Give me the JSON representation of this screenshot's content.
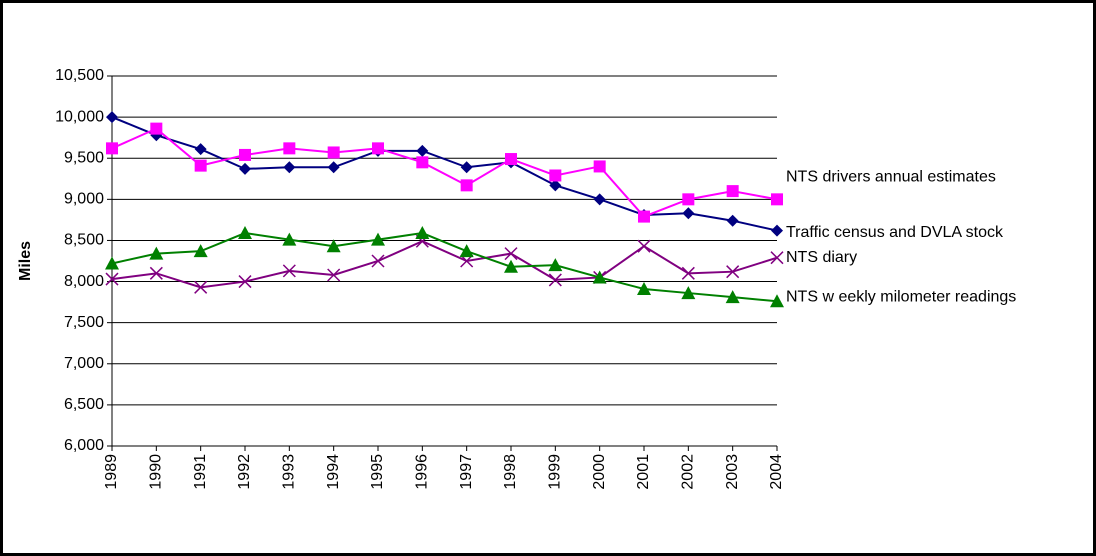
{
  "chart_data": {
    "type": "line",
    "y_axis_label": "Miles",
    "categories": [
      "1989",
      "1990",
      "1991",
      "1992",
      "1993",
      "1994",
      "1995",
      "1996",
      "1997",
      "1998",
      "1999",
      "2000",
      "2001",
      "2002",
      "2003",
      "2004"
    ],
    "series": [
      {
        "name": "Traffic census and DVLA stock",
        "color": "#000080",
        "marker": "diamond",
        "values": [
          10000,
          9780,
          9610,
          9370,
          9390,
          9390,
          9590,
          9590,
          9390,
          9450,
          9170,
          9000,
          8810,
          8830,
          8740,
          8620
        ]
      },
      {
        "name": "NTS drivers annual estimates",
        "color": "#ff00ff",
        "marker": "square",
        "values": [
          9620,
          9860,
          9410,
          9540,
          9620,
          9570,
          9620,
          9450,
          9170,
          9490,
          9290,
          9400,
          8790,
          9000,
          9100,
          9000
        ]
      },
      {
        "name": "NTS diary",
        "color": "#800080",
        "marker": "x",
        "values": [
          8030,
          8100,
          7930,
          8000,
          8130,
          8080,
          8250,
          8490,
          8250,
          8340,
          8020,
          8050,
          8430,
          8100,
          8120,
          8290
        ]
      },
      {
        "name": "NTS w eekly milometer readings",
        "color": "#008000",
        "marker": "triangle",
        "values": [
          8220,
          8340,
          8370,
          8590,
          8510,
          8430,
          8510,
          8590,
          8370,
          8180,
          8200,
          8050,
          7910,
          7860,
          7810,
          7760
        ]
      }
    ],
    "ylim": [
      6000,
      10500
    ],
    "yticks": [
      {
        "value": 6000,
        "label": "6,000"
      },
      {
        "value": 6500,
        "label": "6,500"
      },
      {
        "value": 7000,
        "label": "7,000"
      },
      {
        "value": 7500,
        "label": "7,500"
      },
      {
        "value": 8000,
        "label": "8,000"
      },
      {
        "value": 8500,
        "label": "8,500"
      },
      {
        "value": 9000,
        "label": "9,000"
      },
      {
        "value": 9500,
        "label": "9,500"
      },
      {
        "value": 10000,
        "label": "10,000"
      },
      {
        "value": 10500,
        "label": "10,500"
      }
    ],
    "grid": true
  }
}
